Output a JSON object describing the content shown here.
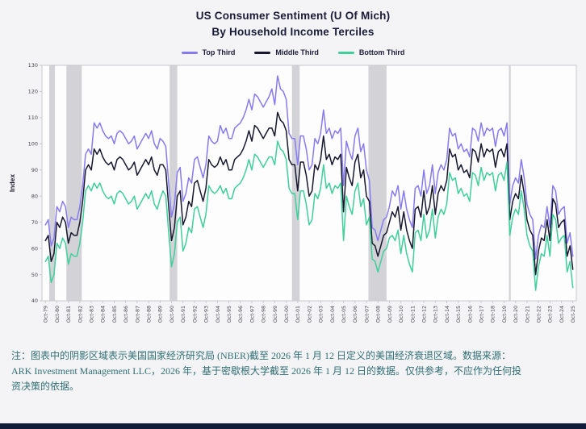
{
  "page": {
    "title_line1": "US Consumer Sentiment (U Of Mich)",
    "title_line2": "By Household Income Terciles"
  },
  "legend": {
    "items": [
      {
        "label": "Top Third",
        "color": "#867af0"
      },
      {
        "label": "Middle Third",
        "color": "#16162e"
      },
      {
        "label": "Bottom Third",
        "color": "#3fcf9a"
      }
    ]
  },
  "note": {
    "lines": [
      "注：图表中的阴影区域表示美国国家经济研究局 (NBER)截至 2026 年 1 月 12 日定义的美国经济衰退区域。数据来源：",
      "ARK Investment Management LLC，2026 年，基于密歇根大学截至 2026 年 1 月 12 日的数据。仅供参考，不应作为任何投",
      "资决策的依据。"
    ]
  },
  "chart_data": {
    "type": "line",
    "title": "US Consumer Sentiment (U Of Mich) By Household Income Terciles",
    "xlabel": "",
    "ylabel": "Index",
    "ylim": [
      40,
      130
    ],
    "y_ticks": [
      40,
      50,
      60,
      70,
      80,
      90,
      100,
      110,
      120,
      130
    ],
    "grid": false,
    "legend_position": "top",
    "x_start_year": 1979.75,
    "x_step_years": 0.25,
    "sampling_note": "values estimated from chart at quarterly resolution, Oct-1979 to Oct-2025",
    "x_tick_labels": [
      "Oct-79",
      "Oct-80",
      "Oct-81",
      "Oct-82",
      "Oct-83",
      "Oct-84",
      "Oct-85",
      "Oct-86",
      "Oct-87",
      "Oct-88",
      "Oct-89",
      "Oct-90",
      "Oct-91",
      "Oct-92",
      "Oct-93",
      "Oct-94",
      "Oct-95",
      "Oct-96",
      "Oct-97",
      "Oct-98",
      "Oct-99",
      "Oct-00",
      "Oct-01",
      "Oct-02",
      "Oct-03",
      "Oct-04",
      "Oct-05",
      "Oct-06",
      "Oct-07",
      "Oct-08",
      "Oct-09",
      "Oct-10",
      "Oct-11",
      "Oct-12",
      "Oct-13",
      "Oct-14",
      "Oct-15",
      "Oct-16",
      "Oct-17",
      "Oct-18",
      "Oct-19",
      "Oct-20",
      "Oct-21",
      "Oct-22",
      "Oct-23",
      "Oct-24",
      "Oct-25"
    ],
    "recession_bands": [
      [
        1980.08,
        1980.58
      ],
      [
        1981.58,
        1982.92
      ],
      [
        1990.58,
        1991.25
      ],
      [
        2001.25,
        2001.92
      ],
      [
        2007.92,
        2009.5
      ],
      [
        2020.17,
        2020.33
      ]
    ],
    "band_color": "#d3d3d7",
    "plot_bg": "#fdfdfe",
    "border_color": "#c9c9ce",
    "series": [
      {
        "name": "Top Third",
        "color": "#867af0",
        "values": [
          69,
          71,
          61,
          64,
          76,
          74,
          78,
          76,
          68,
          72,
          71,
          71,
          76,
          84,
          96,
          98,
          96,
          108,
          106,
          108,
          105,
          103,
          102,
          103,
          100,
          104,
          105,
          104,
          102,
          100,
          101,
          103,
          98,
          100,
          102,
          104,
          102,
          105,
          100,
          98,
          102,
          101,
          99,
          85,
          72,
          77,
          89,
          91,
          78,
          81,
          87,
          85,
          94,
          95,
          91,
          87,
          92,
          103,
          101,
          100,
          101,
          107,
          104,
          106,
          102,
          102,
          106,
          107,
          108,
          110,
          113,
          117,
          113,
          119,
          118,
          116,
          114,
          116,
          118,
          121,
          115,
          126,
          121,
          120,
          117,
          104,
          102,
          102,
          92,
          103,
          103,
          98,
          90,
          92,
          102,
          100,
          104,
          113,
          104,
          106,
          102,
          105,
          104,
          106,
          84,
          101,
          97,
          94,
          103,
          106,
          97,
          100,
          90,
          86,
          68,
          67,
          63,
          67,
          71,
          72,
          76,
          82,
          80,
          84,
          75,
          82,
          75,
          71,
          68,
          83,
          84,
          80,
          90,
          81,
          84,
          92,
          81,
          89,
          92,
          90,
          94,
          106,
          103,
          104,
          98,
          100,
          97,
          98,
          95,
          106,
          105,
          101,
          108,
          103,
          106,
          105,
          106,
          99,
          105,
          106,
          103,
          108,
          77,
          84,
          87,
          85,
          94,
          87,
          77,
          73,
          71,
          56,
          65,
          69,
          68,
          76,
          68,
          84,
          82,
          73,
          75,
          76,
          62,
          66,
          57
        ]
      },
      {
        "name": "Middle Third",
        "color": "#16162e",
        "values": [
          63,
          65,
          55,
          58,
          70,
          68,
          72,
          70,
          62,
          66,
          65,
          65,
          70,
          78,
          90,
          92,
          90,
          98,
          96,
          98,
          95,
          93,
          92,
          93,
          90,
          94,
          95,
          94,
          92,
          90,
          91,
          93,
          88,
          90,
          92,
          94,
          92,
          95,
          90,
          88,
          92,
          92,
          90,
          76,
          63,
          68,
          80,
          82,
          69,
          72,
          78,
          76,
          85,
          86,
          82,
          78,
          83,
          94,
          92,
          91,
          92,
          95,
          92,
          94,
          90,
          90,
          94,
          95,
          96,
          98,
          101,
          105,
          101,
          107,
          106,
          104,
          102,
          104,
          106,
          106,
          103,
          112,
          109,
          108,
          105,
          94,
          92,
          92,
          82,
          93,
          93,
          88,
          80,
          82,
          92,
          90,
          94,
          103,
          94,
          96,
          92,
          95,
          94,
          96,
          74,
          91,
          87,
          84,
          93,
          96,
          87,
          90,
          80,
          78,
          62,
          61,
          57,
          61,
          65,
          66,
          70,
          74,
          72,
          76,
          67,
          74,
          67,
          63,
          60,
          75,
          76,
          72,
          82,
          73,
          76,
          84,
          73,
          81,
          84,
          82,
          86,
          98,
          95,
          96,
          90,
          92,
          89,
          90,
          87,
          98,
          97,
          93,
          100,
          95,
          98,
          97,
          98,
          91,
          97,
          98,
          95,
          100,
          71,
          78,
          81,
          79,
          88,
          81,
          71,
          67,
          65,
          50,
          59,
          64,
          63,
          71,
          63,
          79,
          77,
          68,
          70,
          71,
          57,
          61,
          52
        ]
      },
      {
        "name": "Bottom Third",
        "color": "#3fcf9a",
        "values": [
          55,
          57,
          47,
          50,
          62,
          60,
          64,
          62,
          54,
          58,
          57,
          57,
          62,
          70,
          82,
          84,
          82,
          85,
          83,
          85,
          82,
          80,
          79,
          80,
          77,
          81,
          82,
          81,
          79,
          77,
          78,
          80,
          75,
          77,
          79,
          81,
          79,
          82,
          77,
          75,
          79,
          82,
          80,
          66,
          53,
          58,
          70,
          72,
          59,
          62,
          68,
          66,
          75,
          76,
          72,
          68,
          73,
          84,
          82,
          81,
          82,
          84,
          81,
          83,
          79,
          79,
          83,
          84,
          85,
          87,
          90,
          94,
          90,
          96,
          95,
          93,
          91,
          93,
          95,
          95,
          92,
          101,
          98,
          97,
          94,
          83,
          81,
          81,
          71,
          82,
          82,
          77,
          69,
          71,
          81,
          79,
          83,
          92,
          83,
          85,
          81,
          84,
          83,
          85,
          63,
          80,
          76,
          73,
          82,
          85,
          76,
          79,
          69,
          72,
          56,
          55,
          51,
          55,
          59,
          60,
          64,
          65,
          63,
          67,
          58,
          65,
          58,
          54,
          51,
          66,
          67,
          63,
          73,
          64,
          67,
          75,
          64,
          72,
          75,
          73,
          77,
          89,
          86,
          87,
          81,
          83,
          80,
          81,
          78,
          89,
          88,
          84,
          91,
          86,
          89,
          88,
          89,
          82,
          88,
          89,
          86,
          93,
          65,
          72,
          75,
          73,
          82,
          75,
          65,
          61,
          59,
          44,
          53,
          58,
          57,
          65,
          57,
          73,
          71,
          62,
          64,
          65,
          51,
          55,
          45
        ]
      }
    ]
  }
}
